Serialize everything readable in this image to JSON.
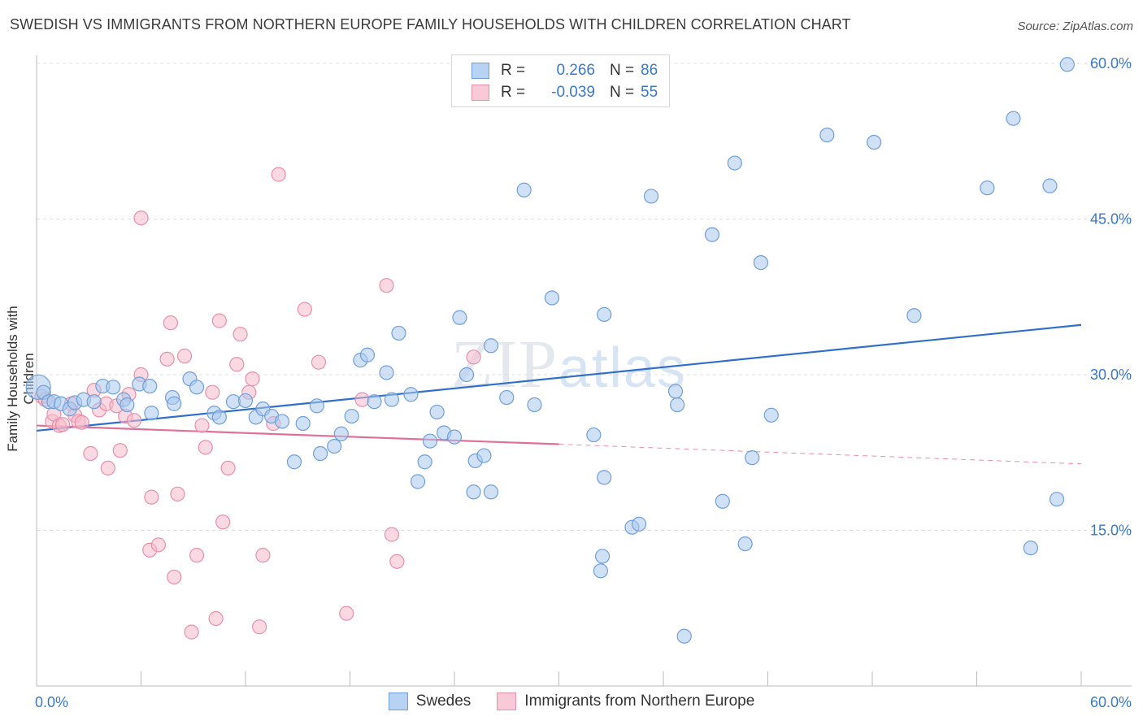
{
  "header": {
    "title": "SWEDISH VS IMMIGRANTS FROM NORTHERN EUROPE FAMILY HOUSEHOLDS WITH CHILDREN CORRELATION CHART",
    "source": "Source: ZipAtlas.com"
  },
  "watermark": {
    "zip": "ZIP",
    "atlas": "atlas"
  },
  "legend": {
    "rows": [
      {
        "r_label": "R =",
        "r_value": "0.266",
        "n_label": "N =",
        "n_value": "86"
      },
      {
        "r_label": "R =",
        "r_value": "-0.039",
        "n_label": "N =",
        "n_value": "55"
      }
    ]
  },
  "bottom_legend": {
    "swedes": "Swedes",
    "immigrants": "Immigrants from Northern Europe"
  },
  "colors": {
    "swedes_fill": "#a9c8ee",
    "swedes_stroke": "#6f9fd8",
    "swedes_line": "#2f6fcb",
    "imm_fill": "#f5b9cb",
    "imm_stroke": "#e690ab",
    "imm_line": "#e07098",
    "tick_text": "#3b78c8",
    "grid": "#dcdcdc"
  },
  "chart_data": {
    "type": "scatter",
    "title": "SWEDISH VS IMMIGRANTS FROM NORTHERN EUROPE FAMILY HOUSEHOLDS WITH CHILDREN CORRELATION CHART",
    "xlabel": "",
    "ylabel": "Family Households with Children",
    "xlim": [
      0,
      60
    ],
    "ylim": [
      0,
      60
    ],
    "x_tick_labels": [
      "0.0%",
      "60.0%"
    ],
    "y_ticks": [
      15,
      30,
      45,
      60
    ],
    "y_tick_labels": [
      "15.0%",
      "30.0%",
      "45.0%",
      "60.0%"
    ],
    "grid": true,
    "legend_position": "top-center",
    "series": [
      {
        "name": "Swedes",
        "r": 0.266,
        "n": 86,
        "trend": {
          "x": [
            0,
            60
          ],
          "y": [
            24.6,
            34.8
          ],
          "style": "solid"
        },
        "points": [
          [
            0.1,
            28.8
          ],
          [
            0.4,
            28.3
          ],
          [
            0.7,
            27.4
          ],
          [
            1.0,
            27.4
          ],
          [
            1.4,
            27.2
          ],
          [
            1.9,
            26.7
          ],
          [
            2.2,
            27.3
          ],
          [
            2.7,
            27.6
          ],
          [
            3.3,
            27.4
          ],
          [
            3.8,
            28.9
          ],
          [
            4.4,
            28.8
          ],
          [
            5.0,
            27.6
          ],
          [
            5.2,
            27.1
          ],
          [
            5.9,
            29.1
          ],
          [
            6.5,
            28.9
          ],
          [
            6.6,
            26.3
          ],
          [
            7.8,
            27.8
          ],
          [
            8.8,
            29.6
          ],
          [
            7.9,
            27.2
          ],
          [
            9.2,
            28.8
          ],
          [
            10.2,
            26.3
          ],
          [
            10.5,
            25.9
          ],
          [
            11.3,
            27.4
          ],
          [
            12.0,
            27.5
          ],
          [
            12.6,
            25.9
          ],
          [
            13.0,
            26.7
          ],
          [
            13.5,
            26.0
          ],
          [
            14.1,
            25.5
          ],
          [
            14.8,
            21.6
          ],
          [
            15.3,
            25.3
          ],
          [
            16.1,
            27.0
          ],
          [
            16.3,
            22.4
          ],
          [
            17.1,
            23.1
          ],
          [
            17.5,
            24.3
          ],
          [
            18.1,
            26.0
          ],
          [
            18.6,
            31.4
          ],
          [
            19.0,
            31.9
          ],
          [
            19.4,
            27.4
          ],
          [
            20.1,
            30.2
          ],
          [
            20.4,
            27.6
          ],
          [
            20.8,
            34.0
          ],
          [
            21.5,
            28.1
          ],
          [
            21.9,
            19.7
          ],
          [
            22.3,
            21.6
          ],
          [
            22.6,
            23.6
          ],
          [
            23.0,
            26.4
          ],
          [
            23.4,
            24.4
          ],
          [
            24.0,
            24.0
          ],
          [
            24.3,
            35.5
          ],
          [
            24.7,
            30.0
          ],
          [
            25.1,
            18.7
          ],
          [
            25.2,
            21.7
          ],
          [
            25.7,
            22.2
          ],
          [
            26.1,
            32.8
          ],
          [
            26.1,
            18.7
          ],
          [
            27.0,
            27.8
          ],
          [
            28.0,
            47.8
          ],
          [
            28.6,
            27.1
          ],
          [
            29.6,
            37.4
          ],
          [
            32.0,
            24.2
          ],
          [
            32.4,
            11.1
          ],
          [
            32.5,
            12.5
          ],
          [
            32.6,
            35.8
          ],
          [
            32.6,
            20.1
          ],
          [
            34.2,
            15.3
          ],
          [
            34.6,
            15.6
          ],
          [
            35.3,
            47.2
          ],
          [
            36.7,
            28.4
          ],
          [
            36.8,
            27.1
          ],
          [
            37.2,
            4.8
          ],
          [
            38.8,
            43.5
          ],
          [
            39.4,
            17.8
          ],
          [
            40.1,
            50.4
          ],
          [
            40.7,
            13.7
          ],
          [
            41.1,
            22.0
          ],
          [
            41.6,
            40.8
          ],
          [
            42.2,
            26.1
          ],
          [
            45.4,
            53.1
          ],
          [
            48.1,
            52.4
          ],
          [
            50.4,
            35.7
          ],
          [
            54.6,
            48.0
          ],
          [
            56.1,
            54.7
          ],
          [
            57.1,
            13.3
          ],
          [
            58.2,
            48.2
          ],
          [
            58.6,
            18.0
          ],
          [
            59.2,
            59.9
          ]
        ]
      },
      {
        "name": "Immigrants from Northern Europe",
        "r": -0.039,
        "n": 55,
        "trend": {
          "x": [
            0,
            30,
            60
          ],
          "y": [
            25.1,
            23.3,
            21.4
          ],
          "style": "solid-then-dashed",
          "dash_from": 30
        },
        "points": [
          [
            0.3,
            27.9
          ],
          [
            0.5,
            27.6
          ],
          [
            0.9,
            25.5
          ],
          [
            1.0,
            26.2
          ],
          [
            1.3,
            25.1
          ],
          [
            1.5,
            25.2
          ],
          [
            2.0,
            27.2
          ],
          [
            2.2,
            26.1
          ],
          [
            2.4,
            25.5
          ],
          [
            2.6,
            25.4
          ],
          [
            3.1,
            22.4
          ],
          [
            3.3,
            28.5
          ],
          [
            3.6,
            26.6
          ],
          [
            4.0,
            27.2
          ],
          [
            4.1,
            21.0
          ],
          [
            4.6,
            27.0
          ],
          [
            4.8,
            22.7
          ],
          [
            5.1,
            26.0
          ],
          [
            5.3,
            28.1
          ],
          [
            5.6,
            25.6
          ],
          [
            6.0,
            30.0
          ],
          [
            6.0,
            45.1
          ],
          [
            6.5,
            13.1
          ],
          [
            6.6,
            18.2
          ],
          [
            7.0,
            13.6
          ],
          [
            7.5,
            31.5
          ],
          [
            7.7,
            35.0
          ],
          [
            7.9,
            10.5
          ],
          [
            8.1,
            18.5
          ],
          [
            8.5,
            31.8
          ],
          [
            8.9,
            5.2
          ],
          [
            9.2,
            12.6
          ],
          [
            9.5,
            25.1
          ],
          [
            9.7,
            23.0
          ],
          [
            10.1,
            28.3
          ],
          [
            10.3,
            6.5
          ],
          [
            10.5,
            35.2
          ],
          [
            10.7,
            15.8
          ],
          [
            11.0,
            21.0
          ],
          [
            11.5,
            31.0
          ],
          [
            11.7,
            33.9
          ],
          [
            12.2,
            28.3
          ],
          [
            12.4,
            29.6
          ],
          [
            12.8,
            5.7
          ],
          [
            13.0,
            12.6
          ],
          [
            13.6,
            25.3
          ],
          [
            13.9,
            49.3
          ],
          [
            15.4,
            36.3
          ],
          [
            16.2,
            31.2
          ],
          [
            17.8,
            7.0
          ],
          [
            18.7,
            27.6
          ],
          [
            20.1,
            38.6
          ],
          [
            20.4,
            14.6
          ],
          [
            20.7,
            12.0
          ],
          [
            25.1,
            31.7
          ]
        ]
      }
    ]
  }
}
